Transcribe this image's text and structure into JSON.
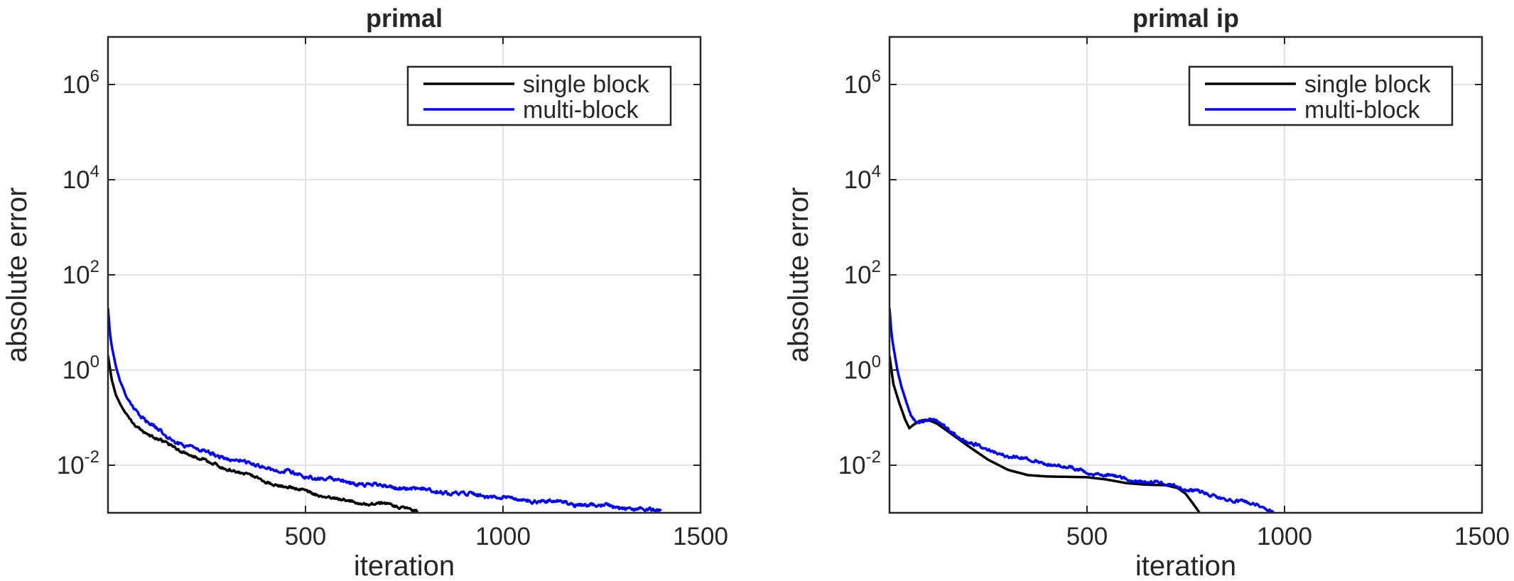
{
  "chart_data": [
    {
      "type": "line",
      "title": "primal",
      "xlabel": "iteration",
      "ylabel": "absolute error",
      "xlim": [
        0,
        1500
      ],
      "ylim": [
        0.001,
        10000000
      ],
      "yscale": "log",
      "grid": true,
      "legend": "top-right",
      "xticks": [
        {
          "value": 500,
          "label": "500"
        },
        {
          "value": 1000,
          "label": "1000"
        },
        {
          "value": 1500,
          "label": "1500"
        }
      ],
      "yticks": [
        {
          "value": 0.01,
          "base": "10",
          "exp": "-2"
        },
        {
          "value": 1,
          "base": "10",
          "exp": "0"
        },
        {
          "value": 100,
          "base": "10",
          "exp": "2"
        },
        {
          "value": 10000,
          "base": "10",
          "exp": "4"
        },
        {
          "value": 1000000,
          "base": "10",
          "exp": "6"
        }
      ],
      "series": [
        {
          "name": "single block",
          "color": "#000000",
          "noise": 0.05,
          "x": [
            0,
            10,
            20,
            30,
            45,
            60,
            80,
            100,
            125,
            150,
            175,
            200,
            250,
            300,
            350,
            400,
            450,
            500,
            550,
            600,
            650,
            700,
            750,
            785
          ],
          "y": [
            2.0,
            0.6,
            0.3,
            0.2,
            0.12,
            0.085,
            0.06,
            0.045,
            0.035,
            0.028,
            0.022,
            0.018,
            0.012,
            0.0085,
            0.0065,
            0.0045,
            0.0035,
            0.0028,
            0.0022,
            0.0018,
            0.0016,
            0.0015,
            0.0013,
            0.0011
          ]
        },
        {
          "name": "multi-block",
          "color": "#0000ff",
          "noise": 0.07,
          "x": [
            0,
            5,
            10,
            20,
            30,
            50,
            75,
            100,
            150,
            200,
            300,
            400,
            500,
            600,
            700,
            800,
            900,
            1000,
            1100,
            1200,
            1300,
            1400
          ],
          "y": [
            20.0,
            6.0,
            3.0,
            1.2,
            0.6,
            0.25,
            0.13,
            0.08,
            0.04,
            0.025,
            0.014,
            0.009,
            0.006,
            0.0045,
            0.0036,
            0.003,
            0.0025,
            0.0021,
            0.0018,
            0.0015,
            0.0013,
            0.0011
          ]
        }
      ]
    },
    {
      "type": "line",
      "title": "primal ip",
      "xlabel": "iteration",
      "ylabel": "absolute error",
      "xlim": [
        0,
        1500
      ],
      "ylim": [
        0.001,
        10000000
      ],
      "yscale": "log",
      "grid": true,
      "legend": "top-right",
      "xticks": [
        {
          "value": 500,
          "label": "500"
        },
        {
          "value": 1000,
          "label": "1000"
        },
        {
          "value": 1500,
          "label": "1500"
        }
      ],
      "yticks": [
        {
          "value": 0.01,
          "base": "10",
          "exp": "-2"
        },
        {
          "value": 1,
          "base": "10",
          "exp": "0"
        },
        {
          "value": 100,
          "base": "10",
          "exp": "2"
        },
        {
          "value": 10000,
          "base": "10",
          "exp": "4"
        },
        {
          "value": 1000000,
          "base": "10",
          "exp": "6"
        }
      ],
      "series": [
        {
          "name": "single block",
          "color": "#000000",
          "noise": 0,
          "x": [
            0,
            10,
            25,
            40,
            50,
            60,
            75,
            90,
            100,
            120,
            150,
            200,
            250,
            300,
            350,
            400,
            450,
            500,
            550,
            600,
            650,
            700,
            730,
            750,
            770,
            785
          ],
          "y": [
            2.0,
            0.5,
            0.2,
            0.09,
            0.06,
            0.07,
            0.085,
            0.09,
            0.088,
            0.075,
            0.05,
            0.025,
            0.013,
            0.008,
            0.0062,
            0.0058,
            0.0057,
            0.0056,
            0.005,
            0.0042,
            0.0039,
            0.0038,
            0.0033,
            0.0025,
            0.0015,
            0.001
          ]
        },
        {
          "name": "multi-block",
          "color": "#0000ff",
          "noise": 0.06,
          "x": [
            0,
            5,
            10,
            20,
            30,
            40,
            50,
            60,
            75,
            90,
            100,
            120,
            150,
            200,
            250,
            300,
            350,
            400,
            450,
            500,
            550,
            600,
            650,
            700,
            750,
            800,
            850,
            900,
            950,
            975
          ],
          "y": [
            20.0,
            6.0,
            3.0,
            1.0,
            0.45,
            0.25,
            0.14,
            0.095,
            0.085,
            0.09,
            0.09,
            0.08,
            0.055,
            0.03,
            0.021,
            0.016,
            0.013,
            0.011,
            0.009,
            0.0072,
            0.0062,
            0.0052,
            0.0045,
            0.004,
            0.0033,
            0.0025,
            0.002,
            0.0016,
            0.0013,
            0.0011
          ]
        }
      ]
    }
  ]
}
